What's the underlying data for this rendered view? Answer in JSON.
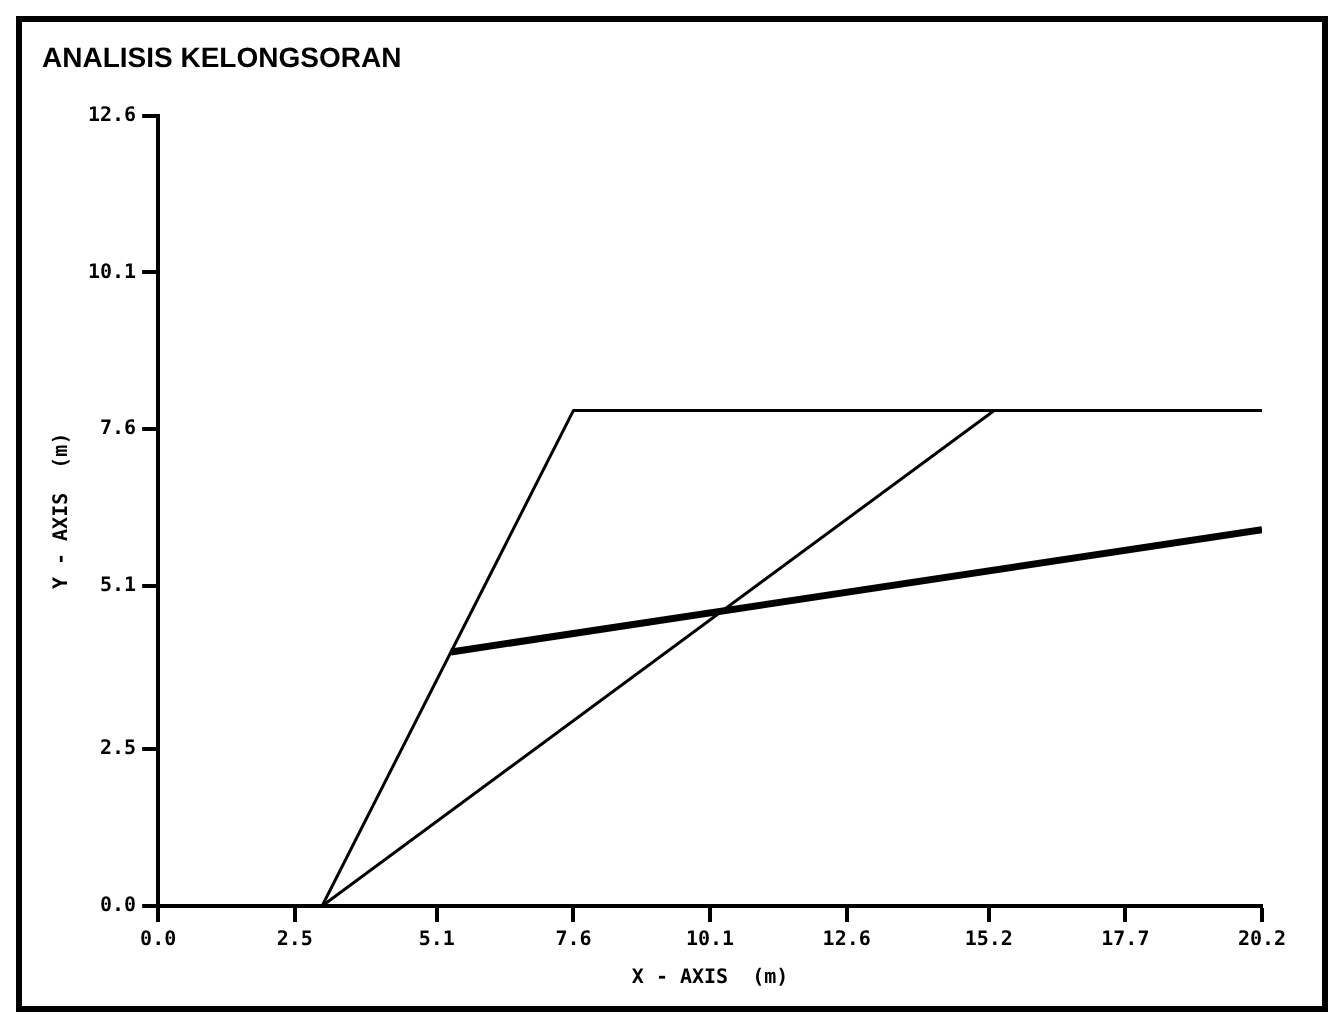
{
  "chart_data": {
    "type": "line",
    "title": "ANALISIS KELONGSORAN",
    "xlabel": "X - AXIS  (m)",
    "ylabel": "Y - AXIS  (m)",
    "xlim": [
      0,
      20.2
    ],
    "xticks": [
      {
        "value": 0,
        "label": "0.0"
      },
      2.5,
      5.1,
      7.6,
      10.1,
      12.6,
      15.2,
      17.7,
      20.2
    ],
    "ylim": [
      0,
      12.6
    ],
    "yticks": [
      {
        "value": 0,
        "label": "0.0"
      },
      2.5,
      5.1,
      7.6,
      10.1,
      12.6
    ],
    "marker": "none",
    "legend": false,
    "series": [
      {
        "color": "#000000",
        "x": [
          3.0,
          7.6,
          20.2
        ],
        "values": [
          0,
          7.9,
          7.9
        ]
      },
      {
        "color": "#000000",
        "x": [
          3.0,
          15.3
        ],
        "values": [
          0,
          7.9
        ]
      },
      {
        "color": "#000000",
        "x": [
          5.36,
          20.2
        ],
        "values": [
          4.05,
          6.0
        ]
      }
    ]
  }
}
